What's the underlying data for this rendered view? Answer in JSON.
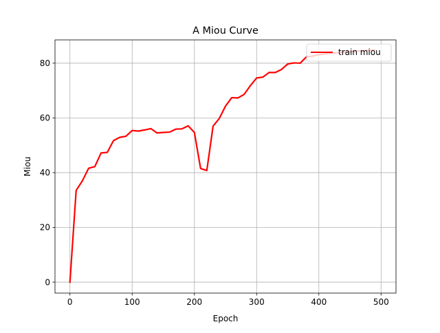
{
  "chart_data": {
    "type": "line",
    "title": "A Miou Curve",
    "xlabel": "Epoch",
    "ylabel": "Miou",
    "xlim": [
      -24,
      524
    ],
    "ylim": [
      -4,
      88.5
    ],
    "xticks": [
      0,
      100,
      200,
      300,
      400,
      500
    ],
    "yticks": [
      0,
      20,
      40,
      60,
      80
    ],
    "grid": true,
    "legend": {
      "position": "upper right"
    },
    "series": [
      {
        "name": "train miou",
        "color": "#ff0000",
        "x": [
          0,
          10,
          20,
          30,
          40,
          50,
          60,
          70,
          80,
          90,
          100,
          110,
          120,
          130,
          140,
          150,
          160,
          170,
          180,
          190,
          200,
          210,
          220,
          230,
          240,
          250,
          260,
          270,
          280,
          290,
          300,
          310,
          320,
          330,
          340,
          350,
          360,
          370,
          380,
          390,
          400,
          410,
          420,
          430,
          440,
          450,
          460,
          470,
          480,
          490
        ],
        "y": [
          0,
          33.5,
          37,
          41.6,
          42.2,
          47.2,
          47.4,
          51.7,
          52.9,
          53.3,
          55.4,
          55.2,
          55.6,
          56.1,
          54.5,
          54.7,
          54.8,
          55.9,
          56.0,
          57.1,
          54.7,
          41.5,
          40.8,
          57.0,
          59.8,
          64.3,
          67.4,
          67.3,
          68.6,
          71.8,
          74.6,
          74.9,
          76.6,
          76.6,
          77.7,
          79.7,
          80.1,
          80.0,
          82.3,
          82.6,
          83.1,
          83.4,
          83.6,
          83.8,
          84.0,
          84.2,
          84.4,
          84.5,
          84.7,
          84.8
        ]
      }
    ]
  }
}
